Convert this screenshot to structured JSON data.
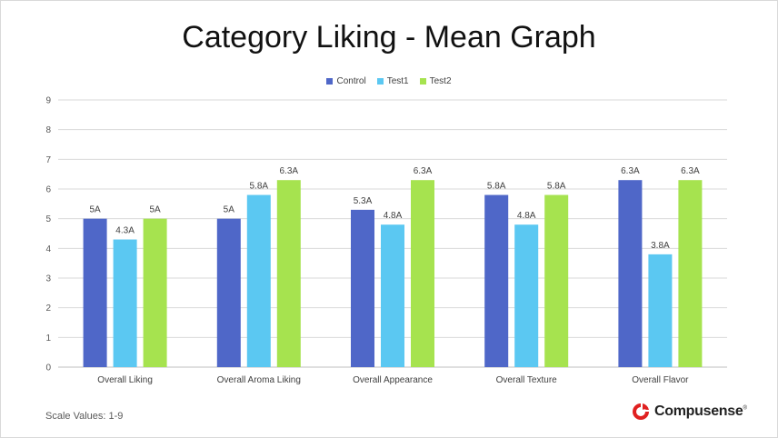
{
  "chart_data": {
    "type": "bar",
    "title": "Category Liking - Mean Graph",
    "categories": [
      "Overall Liking",
      "Overall Aroma Liking",
      "Overall Appearance",
      "Overall Texture",
      "Overall Flavor"
    ],
    "series": [
      {
        "name": "Control",
        "color": "#4f67c8",
        "values": [
          5,
          5,
          5.3,
          5.8,
          6.3
        ],
        "labels": [
          "5A",
          "5A",
          "5.3A",
          "5.8A",
          "6.3A"
        ]
      },
      {
        "name": "Test1",
        "color": "#5bc8f2",
        "values": [
          4.3,
          5.8,
          4.8,
          4.8,
          3.8
        ],
        "labels": [
          "4.3A",
          "5.8A",
          "4.8A",
          "4.8A",
          "3.8A"
        ]
      },
      {
        "name": "Test2",
        "color": "#a6e34f",
        "values": [
          5,
          6.3,
          6.3,
          5.8,
          6.3
        ],
        "labels": [
          "5A",
          "6.3A",
          "6.3A",
          "5.8A",
          "6.3A"
        ]
      }
    ],
    "yticks": [
      "0",
      "1",
      "2",
      "3",
      "4",
      "5",
      "6",
      "7",
      "8",
      "9"
    ],
    "ylim": [
      0,
      9
    ],
    "grid": true,
    "legend_position": "top-center"
  },
  "footer": {
    "note": "Scale Values: 1-9",
    "brand": "Compusense",
    "brand_mark": "®",
    "brand_color": "#e02020"
  }
}
